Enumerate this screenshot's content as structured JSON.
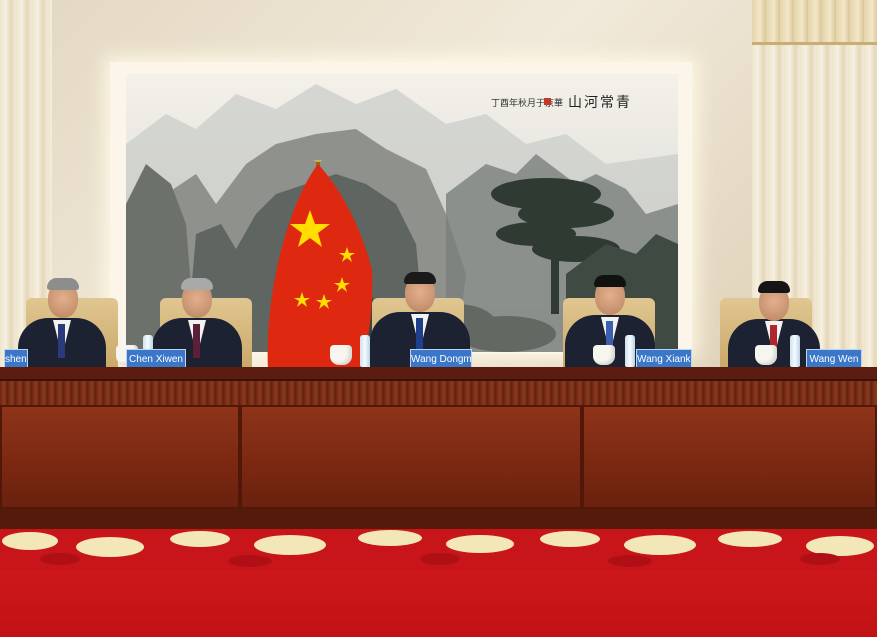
{
  "painting": {
    "inscription": "山河常青",
    "inscription_small": "丁酉年秋月于京華"
  },
  "name_plates": [
    {
      "label": "sheng"
    },
    {
      "label": "Chen Xiwen"
    },
    {
      "label": "Wang Dongming"
    },
    {
      "label": "Wang Xiankui"
    },
    {
      "label": "Wang Wen"
    }
  ],
  "colors": {
    "flag_red": "#de2910",
    "flag_star": "#ffde00",
    "plate_blue": "#3a77c9",
    "desk_wood": "#7a2812",
    "carpet_red": "#c01215"
  }
}
